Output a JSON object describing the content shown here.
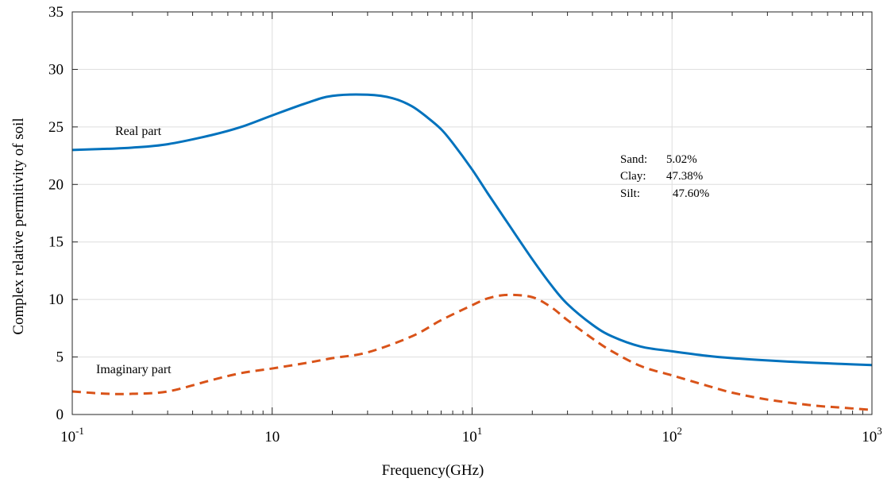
{
  "chart_data": {
    "type": "line",
    "xscale": "log",
    "xlabel": "Frequency(GHz)",
    "ylabel": "Complex relative permitivity of soil",
    "ylim": [
      0,
      35
    ],
    "xlim": [
      0.1,
      1000
    ],
    "grid": true,
    "x_ticks": [
      {
        "base": "10",
        "exp": "-1"
      },
      {
        "base": "10",
        "exp": ""
      },
      {
        "base": "10",
        "exp": "1"
      },
      {
        "base": "10",
        "exp": "2"
      },
      {
        "base": "10",
        "exp": "3"
      }
    ],
    "y_ticks": [
      "0",
      "5",
      "10",
      "15",
      "20",
      "25",
      "30",
      "35"
    ],
    "series": [
      {
        "name": "Real part",
        "color": "#0072BD",
        "style": "solid",
        "x": [
          0.1,
          0.15,
          0.2,
          0.3,
          0.5,
          0.7,
          1,
          1.5,
          2,
          3,
          4,
          5,
          6,
          7,
          8,
          10,
          12,
          15,
          20,
          25,
          30,
          40,
          50,
          70,
          100,
          150,
          200,
          300,
          500,
          700,
          1000
        ],
        "y": [
          23.0,
          23.1,
          23.2,
          23.5,
          24.3,
          25.0,
          26.0,
          27.1,
          27.7,
          27.8,
          27.5,
          26.8,
          25.8,
          24.8,
          23.6,
          21.3,
          19.2,
          16.7,
          13.5,
          11.2,
          9.6,
          7.8,
          6.8,
          5.9,
          5.5,
          5.1,
          4.9,
          4.7,
          4.5,
          4.4,
          4.3
        ]
      },
      {
        "name": "Imaginary part",
        "color": "#D95319",
        "style": "dashed",
        "x": [
          0.1,
          0.15,
          0.2,
          0.3,
          0.5,
          0.7,
          1,
          1.5,
          2,
          3,
          5,
          7,
          10,
          12,
          15,
          20,
          25,
          30,
          40,
          50,
          70,
          100,
          150,
          200,
          300,
          500,
          700,
          1000
        ],
        "y": [
          2.0,
          1.8,
          1.8,
          2.0,
          3.0,
          3.6,
          4.0,
          4.5,
          4.9,
          5.4,
          6.8,
          8.2,
          9.5,
          10.1,
          10.4,
          10.2,
          9.3,
          8.2,
          6.6,
          5.5,
          4.2,
          3.4,
          2.5,
          1.9,
          1.3,
          0.8,
          0.6,
          0.4
        ]
      }
    ],
    "annotations": [
      {
        "text": "Real part"
      },
      {
        "text": "Imaginary part"
      }
    ],
    "composition": [
      {
        "label": "Sand:",
        "value": "5.02%"
      },
      {
        "label": "Clay:",
        "value": "47.38%"
      },
      {
        "label": "Silt:",
        "value": "47.60%"
      }
    ]
  }
}
